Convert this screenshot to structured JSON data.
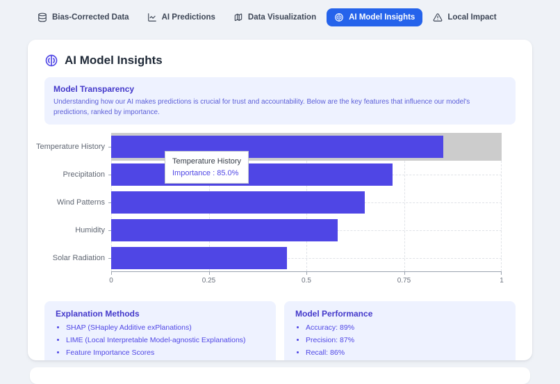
{
  "nav": {
    "tabs": [
      {
        "label": "Bias-Corrected Data",
        "icon": "database-icon",
        "active": false
      },
      {
        "label": "AI Predictions",
        "icon": "line-chart-icon",
        "active": false
      },
      {
        "label": "Data Visualization",
        "icon": "map-icon",
        "active": false
      },
      {
        "label": "AI Model Insights",
        "icon": "brain-icon",
        "active": true
      },
      {
        "label": "Local Impact",
        "icon": "alert-triangle-icon",
        "active": false
      }
    ],
    "active_tab_color": "#2563eb"
  },
  "card": {
    "title": "AI Model Insights",
    "title_icon": "brain-icon",
    "transparency": {
      "heading": "Model Transparency",
      "body": "Understanding how our AI makes predictions is crucial for trust and accountability. Below are the key features that influence our model's predictions, ranked by importance."
    },
    "panels": [
      {
        "heading": "Explanation Methods",
        "items": [
          "SHAP (SHapley Additive exPlanations)",
          "LIME (Local Interpretable Model-agnostic Explanations)",
          "Feature Importance Scores"
        ]
      },
      {
        "heading": "Model Performance",
        "items": [
          "Accuracy: 89%",
          "Precision: 87%",
          "Recall: 86%"
        ]
      }
    ]
  },
  "chart_data": {
    "type": "bar",
    "orientation": "horizontal",
    "title": "",
    "xlabel": "",
    "ylabel": "",
    "categories": [
      "Temperature History",
      "Precipitation",
      "Wind Patterns",
      "Humidity",
      "Solar Radiation"
    ],
    "series": [
      {
        "name": "Importance",
        "values": [
          0.85,
          0.72,
          0.65,
          0.58,
          0.45
        ]
      }
    ],
    "xlim": [
      0,
      1
    ],
    "x_ticks": [
      0,
      0.25,
      0.5,
      0.75,
      1
    ],
    "x_tick_labels": [
      "0",
      "0.25",
      "0.5",
      "0.75",
      "1"
    ],
    "grid": "dashed",
    "legend": "none",
    "bar_color": "#4f46e5",
    "hover": {
      "category": "Temperature History",
      "cursor_color": "#cccccc"
    },
    "tooltip": {
      "label": "Temperature History",
      "value_text": "Importance : 85.0%"
    }
  },
  "colors": {
    "page_bg": "#eff2f7",
    "card_bg": "#ffffff",
    "panel_bg": "#eef2ff",
    "heading_indigo": "#4338ca",
    "accent_indigo": "#4f46e5",
    "active_tab_blue": "#2563eb"
  }
}
